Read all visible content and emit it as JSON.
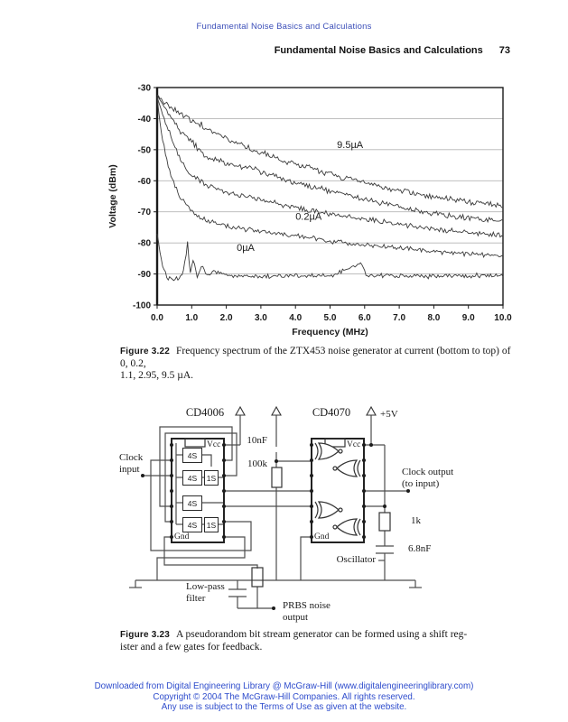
{
  "page": {
    "running_head": "Fundamental Noise Basics and Calculations",
    "section_header": "Fundamental Noise Basics and Calculations",
    "page_number": "73"
  },
  "colors": {
    "running_head_blue": "#3b4eb8",
    "footer_blue": "#2e4ccc",
    "ink": "#1a1a1a",
    "grid_gray": "#b5b5b5",
    "curve_gray": "#3a3a3a"
  },
  "chart_data": {
    "type": "line",
    "title": "",
    "xlabel": "Frequency (MHz)",
    "ylabel": "Voltage (dBm)",
    "xlim": [
      0,
      10
    ],
    "ylim": [
      -100,
      -30
    ],
    "x_ticks": [
      "0.0",
      "1.0",
      "2.0",
      "3.0",
      "4.0",
      "5.0",
      "6.0",
      "7.0",
      "8.0",
      "9.0",
      "10.0"
    ],
    "y_ticks": [
      "-30",
      "-40",
      "-50",
      "-60",
      "-70",
      "-80",
      "-90",
      "-100"
    ],
    "grid": "horizontal",
    "legend": "none (in-plot labels)",
    "series": [
      {
        "name": "0µA",
        "jitter": 0.9,
        "points": [
          [
            0,
            -77
          ],
          [
            0.07,
            -82
          ],
          [
            0.15,
            -87
          ],
          [
            0.3,
            -91.5
          ],
          [
            0.5,
            -92
          ],
          [
            0.7,
            -91
          ],
          [
            0.82,
            -86
          ],
          [
            0.88,
            -79
          ],
          [
            0.95,
            -90
          ],
          [
            1.05,
            -85
          ],
          [
            1.15,
            -91
          ],
          [
            1.3,
            -87.5
          ],
          [
            1.45,
            -91
          ],
          [
            1.6,
            -89
          ],
          [
            2,
            -90.5
          ],
          [
            3,
            -90.8
          ],
          [
            4,
            -90.5
          ],
          [
            5,
            -90.8
          ],
          [
            5.9,
            -86.5
          ],
          [
            6.05,
            -90.5
          ],
          [
            7,
            -90.5
          ],
          [
            8,
            -90.8
          ],
          [
            9,
            -90.5
          ],
          [
            10,
            -90.5
          ]
        ]
      },
      {
        "name": "0.2µA",
        "jitter": 1.0,
        "points": [
          [
            0,
            -33
          ],
          [
            0.1,
            -43
          ],
          [
            0.25,
            -52
          ],
          [
            0.45,
            -60
          ],
          [
            0.7,
            -66
          ],
          [
            1,
            -70
          ],
          [
            1.43,
            -73
          ],
          [
            2,
            -74.5
          ],
          [
            2.5,
            -75.5
          ],
          [
            3,
            -76.3
          ],
          [
            3.5,
            -77
          ],
          [
            4,
            -77.8
          ],
          [
            4.5,
            -78.5
          ],
          [
            5,
            -79.3
          ],
          [
            5.5,
            -80
          ],
          [
            6,
            -80.6
          ],
          [
            6.5,
            -81.2
          ],
          [
            7,
            -81.7
          ],
          [
            7.5,
            -82.2
          ],
          [
            8,
            -82.7
          ],
          [
            8.5,
            -83.1
          ],
          [
            9,
            -83.5
          ],
          [
            9.5,
            -83.8
          ],
          [
            10,
            -84
          ]
        ]
      },
      {
        "name": "1.1µA",
        "jitter": 1.1,
        "points": [
          [
            0,
            -33
          ],
          [
            0.3,
            -43
          ],
          [
            0.65,
            -53
          ],
          [
            1,
            -58.5
          ],
          [
            1.43,
            -61.5
          ],
          [
            2,
            -63.5
          ],
          [
            2.5,
            -65
          ],
          [
            3,
            -66.3
          ],
          [
            3.5,
            -67.5
          ],
          [
            4,
            -68.6
          ],
          [
            4.5,
            -69.7
          ],
          [
            5,
            -70.7
          ],
          [
            5.5,
            -71.6
          ],
          [
            6,
            -72.4
          ],
          [
            6.5,
            -73.2
          ],
          [
            7,
            -74
          ],
          [
            7.5,
            -74.8
          ],
          [
            8,
            -75.5
          ],
          [
            8.5,
            -76.2
          ],
          [
            9,
            -76.8
          ],
          [
            9.5,
            -77.2
          ],
          [
            10,
            -77.6
          ]
        ]
      },
      {
        "name": "2.95µA",
        "jitter": 1.2,
        "points": [
          [
            0,
            -32.5
          ],
          [
            0.3,
            -38
          ],
          [
            0.65,
            -44
          ],
          [
            1,
            -47.5
          ],
          [
            1.43,
            -52.5
          ],
          [
            2,
            -54
          ],
          [
            2.5,
            -55.5
          ],
          [
            3,
            -57
          ],
          [
            3.5,
            -59
          ],
          [
            4,
            -60.5
          ],
          [
            4.5,
            -62
          ],
          [
            5,
            -63.2
          ],
          [
            5.5,
            -64.6
          ],
          [
            6,
            -66
          ],
          [
            6.5,
            -67.2
          ],
          [
            7,
            -68.3
          ],
          [
            7.5,
            -69.5
          ],
          [
            8,
            -70.5
          ],
          [
            8.5,
            -71.4
          ],
          [
            9,
            -72
          ],
          [
            9.5,
            -72.6
          ],
          [
            10,
            -73
          ]
        ]
      },
      {
        "name": "9.5µA",
        "jitter": 1.2,
        "points": [
          [
            0,
            -32.5
          ],
          [
            0.3,
            -35.5
          ],
          [
            0.65,
            -38
          ],
          [
            1,
            -40.5
          ],
          [
            1.43,
            -43
          ],
          [
            2,
            -46.5
          ],
          [
            2.5,
            -48.8
          ],
          [
            3,
            -51
          ],
          [
            3.5,
            -52.8
          ],
          [
            4,
            -54.5
          ],
          [
            4.5,
            -56.2
          ],
          [
            5,
            -57.8
          ],
          [
            5.5,
            -59.3
          ],
          [
            6,
            -60.6
          ],
          [
            6.5,
            -62
          ],
          [
            7,
            -63.2
          ],
          [
            7.5,
            -64.2
          ],
          [
            8,
            -65.2
          ],
          [
            8.5,
            -66
          ],
          [
            9,
            -66.6
          ],
          [
            9.5,
            -67.4
          ],
          [
            10,
            -68
          ]
        ]
      }
    ],
    "labels": [
      {
        "text": "9.5µA",
        "x": 5.2,
        "y": -49.5
      },
      {
        "text": "0.2µA",
        "x": 4.0,
        "y": -72.5
      },
      {
        "text": "0µA",
        "x": 2.3,
        "y": -82.5
      }
    ]
  },
  "figure_322": {
    "label": "Figure 3.22",
    "line1": "Frequency spectrum of the ZTX453 noise generator at current (bottom to top) of 0, 0.2,",
    "line2": "1.1, 2.95, 9.5 µA."
  },
  "circuit": {
    "ic1": {
      "name": "CD4006",
      "vcc": "Vcc",
      "gnd": "Gnd",
      "cells": {
        "c1": "4S",
        "c2": "4S",
        "c2b": "1S",
        "c3": "4S",
        "c4": "4S",
        "c4b": "1S"
      }
    },
    "ic2": {
      "name": "CD4070",
      "vcc": "Vcc",
      "gnd": "Gnd"
    },
    "labels": {
      "supply": "+5V",
      "cap1": "10nF",
      "res1": "100k",
      "clock_in_1": "Clock",
      "clock_in_2": "input",
      "clock_out_1": "Clock output",
      "clock_out_2": "(to input)",
      "res2": "1k",
      "cap2": "6.8nF",
      "oscillator": "Oscillator",
      "lowpass_1": "Low-pass",
      "lowpass_2": "filter",
      "prbs_1": "PRBS noise",
      "prbs_2": "output"
    }
  },
  "figure_323": {
    "label": "Figure 3.23",
    "line1": "A pseudorandom bit stream generator can be formed using a shift reg-",
    "line2": "ister and a few gates for feedback."
  },
  "footer": {
    "line1": "Downloaded from Digital Engineering Library @ McGraw-Hill (www.digitalengineeringlibrary.com)",
    "line2": "Copyright © 2004 The McGraw-Hill Companies. All rights reserved.",
    "line3": "Any use is subject to the Terms of Use as given at the website."
  }
}
